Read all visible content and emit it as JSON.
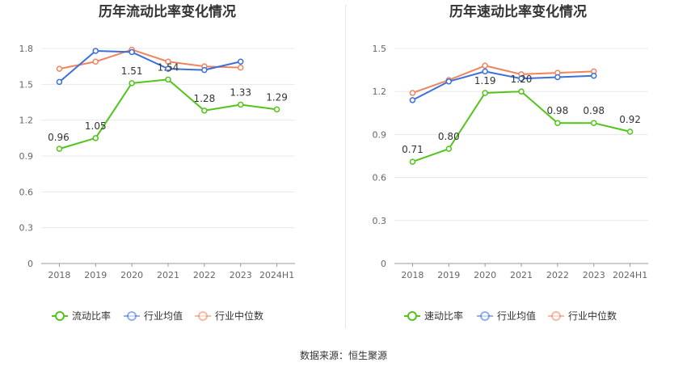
{
  "chart_data": [
    {
      "type": "line",
      "title": "历年流动比率变化情况",
      "categories": [
        "2018",
        "2019",
        "2020",
        "2021",
        "2022",
        "2023",
        "2024H1"
      ],
      "ylim": [
        0,
        1.8
      ],
      "yticks": [
        "0",
        "0.3",
        "0.6",
        "0.9",
        "1.2",
        "1.5",
        "1.8"
      ],
      "grid": true,
      "legend_position": "bottom",
      "series": [
        {
          "name": "流动比率",
          "color": "#52c41a",
          "values": [
            0.96,
            1.05,
            1.51,
            1.54,
            1.28,
            1.33,
            1.29
          ],
          "labels": [
            "0.96",
            "1.05",
            "1.51",
            "1.54",
            "1.28",
            "1.33",
            "1.29"
          ]
        },
        {
          "name": "行业均值",
          "color": "#3d6fd9",
          "values": [
            1.52,
            1.78,
            1.77,
            1.63,
            1.62,
            1.69,
            null
          ]
        },
        {
          "name": "行业中位数",
          "color": "#f0845f",
          "values": [
            1.63,
            1.69,
            1.79,
            1.69,
            1.65,
            1.64,
            null
          ]
        }
      ]
    },
    {
      "type": "line",
      "title": "历年速动比率变化情况",
      "categories": [
        "2018",
        "2019",
        "2020",
        "2021",
        "2022",
        "2023",
        "2024H1"
      ],
      "ylim": [
        0,
        1.5
      ],
      "yticks": [
        "0",
        "0.3",
        "0.6",
        "0.9",
        "1.2",
        "1.5"
      ],
      "grid": true,
      "legend_position": "bottom",
      "series": [
        {
          "name": "速动比率",
          "color": "#52c41a",
          "values": [
            0.71,
            0.8,
            1.19,
            1.2,
            0.98,
            0.98,
            0.92
          ],
          "labels": [
            "0.71",
            "0.80",
            "1.19",
            "1.20",
            "0.98",
            "0.98",
            "0.92"
          ]
        },
        {
          "name": "行业均值",
          "color": "#3d6fd9",
          "values": [
            1.14,
            1.27,
            1.34,
            1.29,
            1.3,
            1.31,
            null
          ]
        },
        {
          "name": "行业中位数",
          "color": "#f0845f",
          "values": [
            1.19,
            1.28,
            1.38,
            1.32,
            1.33,
            1.34,
            null
          ]
        }
      ]
    }
  ],
  "footer": {
    "source": "数据来源：恒生聚源"
  }
}
